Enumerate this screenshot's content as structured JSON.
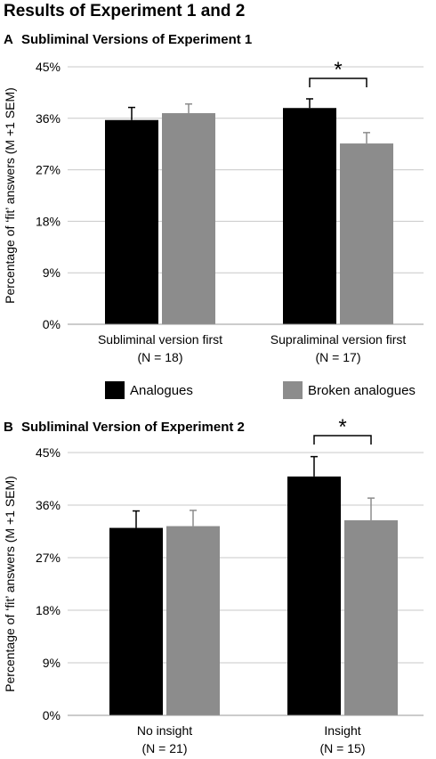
{
  "title": "Results of Experiment 1 and 2",
  "legend": [
    {
      "label": "Analogues",
      "color": "#000000"
    },
    {
      "label": "Broken analogues",
      "color": "#8c8c8c"
    }
  ],
  "panels": [
    {
      "letter": "A",
      "heading": "Subliminal Versions of Experiment 1"
    },
    {
      "letter": "B",
      "heading": "Subliminal Version of Experiment 2"
    }
  ],
  "chart_data": [
    {
      "type": "bar",
      "title": "Subliminal Versions of Experiment 1",
      "ylabel": "Percentage of ‘fit’ answers (M +1 SEM)",
      "xlabel": "",
      "ylim": [
        0,
        45
      ],
      "yticks": [
        "0%",
        "9%",
        "18%",
        "27%",
        "36%",
        "45%"
      ],
      "categories": [
        {
          "line1": "Subliminal version first",
          "line2": "(N = 18)"
        },
        {
          "line1": "Supraliminal version first",
          "line2": "(N = 17)"
        }
      ],
      "series": [
        {
          "name": "Analogues",
          "color": "#000000",
          "values": [
            35.7,
            37.8
          ],
          "sem": [
            2.2,
            1.6
          ]
        },
        {
          "name": "Broken analogues",
          "color": "#8c8c8c",
          "values": [
            36.9,
            31.6
          ],
          "sem": [
            1.6,
            1.9
          ]
        }
      ],
      "significance": [
        {
          "category": 1,
          "label": "*"
        }
      ],
      "grid": true,
      "legend_position": "bottom"
    },
    {
      "type": "bar",
      "title": "Subliminal Version of Experiment 2",
      "ylabel": "Percentage of ‘fit’ answers (M +1 SEM)",
      "xlabel": "",
      "ylim": [
        0,
        45
      ],
      "yticks": [
        "0%",
        "9%",
        "18%",
        "27%",
        "36%",
        "45%"
      ],
      "categories": [
        {
          "line1": "No insight",
          "line2": "(N = 21)"
        },
        {
          "line1": "Insight",
          "line2": "(N = 15)"
        }
      ],
      "series": [
        {
          "name": "Analogues",
          "color": "#000000",
          "values": [
            32.1,
            40.9
          ],
          "sem": [
            2.9,
            3.4
          ]
        },
        {
          "name": "Broken analogues",
          "color": "#8c8c8c",
          "values": [
            32.4,
            33.4
          ],
          "sem": [
            2.7,
            3.8
          ]
        }
      ],
      "significance": [
        {
          "category": 1,
          "label": "*"
        }
      ],
      "grid": true,
      "legend_position": "top"
    }
  ]
}
